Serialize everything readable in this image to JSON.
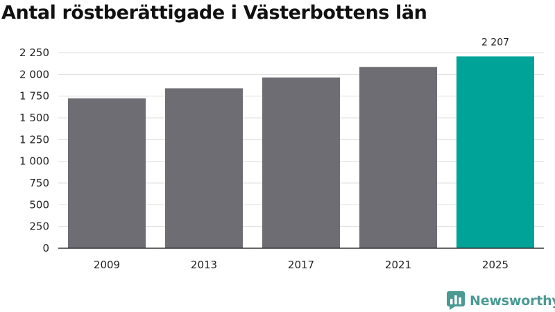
{
  "title": "Antal röstberättigade i Västerbottens län",
  "brand": "Newsworthy",
  "colors": {
    "default_bar": "#6e6d73",
    "highlight_bar": "#00a398",
    "grid": "#dddddd",
    "axis": "#333333",
    "brand": "#4a9a93"
  },
  "chart_data": {
    "type": "bar",
    "title": "Antal röstberättigade i Västerbottens län",
    "xlabel": "",
    "ylabel": "",
    "categories": [
      "2009",
      "2013",
      "2017",
      "2021",
      "2025"
    ],
    "values": [
      1725,
      1840,
      1965,
      2085,
      2207
    ],
    "highlight_index": 4,
    "data_labels": [
      {
        "index": 4,
        "text": "2 207"
      }
    ],
    "ylim": [
      0,
      2250
    ],
    "yticks": [
      0,
      250,
      500,
      750,
      1000,
      1250,
      1500,
      1750,
      2000,
      2250
    ],
    "ytick_labels": [
      "0",
      "250",
      "500",
      "750",
      "1 000",
      "1 250",
      "1 500",
      "1 750",
      "2 000",
      "2 250"
    ],
    "grid": true,
    "legend": "none"
  }
}
